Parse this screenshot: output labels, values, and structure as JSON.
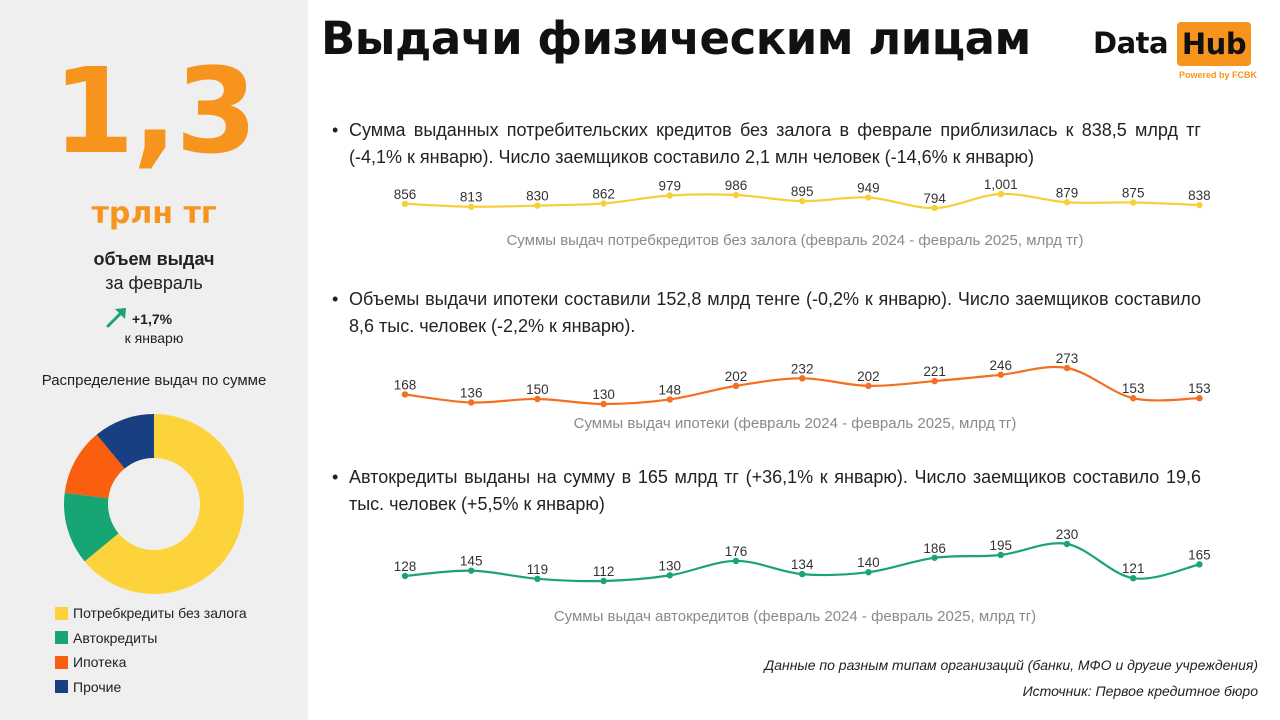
{
  "title": "Выдачи физическим лицам",
  "logo": {
    "data": "Data",
    "hub": "Hub",
    "powered": "Powered by FCBK"
  },
  "summary": {
    "value": "1,3",
    "unit": "трлн тг",
    "label": "объем выдач",
    "period": "за февраль",
    "change": "+1,7%",
    "change_period": "к январю",
    "change_color": "#1aa37a"
  },
  "distribution": {
    "title": "Распределение выдач по сумме",
    "legend": [
      {
        "label": "Потребкредиты без залога",
        "color": "#fdd33b"
      },
      {
        "label": "Автокредиты",
        "color": "#17a673"
      },
      {
        "label": "Ипотека",
        "color": "#f95f0e"
      },
      {
        "label": "Прочие",
        "color": "#173f82"
      }
    ]
  },
  "bullets": [
    {
      "text": "Сумма выданных потребительских кредитов без залога в феврале приблизилась к 838,5 млрд тг (-4,1% к январю). Число заемщиков составило 2,1 млн человек (-14,6% к январю)"
    },
    {
      "text": "Объемы выдачи ипотеки составили 152,8 млрд тенге (-0,2% к январю). Число заемщиков составило 8,6 тыс. человек (-2,2% к январю)."
    },
    {
      "text": "Автокредиты выданы на сумму в 165 млрд тг (+36,1% к январю). Число заемщиков составило 19,6 тыс. человек (+5,5% к январю)"
    }
  ],
  "chart_data": [
    {
      "type": "donut",
      "title": "Распределение выдач по сумме",
      "categories": [
        "Потребкредиты без залога",
        "Автокредиты",
        "Ипотека",
        "Прочие"
      ],
      "values": [
        64,
        13,
        12,
        11
      ],
      "colors": [
        "#fdd33b",
        "#17a673",
        "#f95f0e",
        "#173f82"
      ]
    },
    {
      "type": "line",
      "caption": "Суммы выдач потребкредитов без залога (февраль 2024 - февраль 2025, млрд тг)",
      "labels": [
        "856",
        "813",
        "830",
        "862",
        "979",
        "986",
        "895",
        "949",
        "794",
        "1,001",
        "879",
        "875",
        "838"
      ],
      "values": [
        856,
        813,
        830,
        862,
        979,
        986,
        895,
        949,
        794,
        1001,
        879,
        875,
        838
      ],
      "color": "#f5d03a"
    },
    {
      "type": "line",
      "caption": "Суммы выдач ипотеки  (февраль 2024 - февраль 2025, млрд тг)",
      "labels": [
        "168",
        "136",
        "150",
        "130",
        "148",
        "202",
        "232",
        "202",
        "221",
        "246",
        "273",
        "153",
        "153"
      ],
      "values": [
        168,
        136,
        150,
        130,
        148,
        202,
        232,
        202,
        221,
        246,
        273,
        153,
        153
      ],
      "color": "#f36f21"
    },
    {
      "type": "line",
      "caption": "Суммы выдач автокредитов (февраль 2024 - февраль 2025, млрд тг)",
      "labels": [
        "128",
        "145",
        "119",
        "112",
        "130",
        "176",
        "134",
        "140",
        "186",
        "195",
        "230",
        "121",
        "165"
      ],
      "values": [
        128,
        145,
        119,
        112,
        130,
        176,
        134,
        140,
        186,
        195,
        230,
        121,
        165
      ],
      "color": "#1aa37a"
    }
  ],
  "footnotes": {
    "line1": "Данные по разным типам организаций (банки, МФО и другие учреждения)",
    "line2": "Источник: Первое кредитное бюро"
  }
}
